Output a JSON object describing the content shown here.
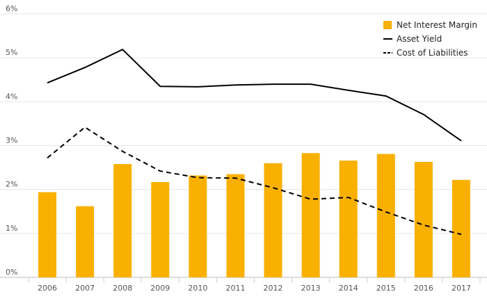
{
  "chart_data": {
    "type": "bar",
    "categories": [
      "2006",
      "2007",
      "2008",
      "2009",
      "2010",
      "2011",
      "2012",
      "2013",
      "2014",
      "2015",
      "2016",
      "2017"
    ],
    "ylim": [
      0,
      6
    ],
    "yticks": [
      0,
      1,
      2,
      3,
      4,
      5,
      6
    ],
    "ytick_labels": [
      "0%",
      "1%",
      "2%",
      "3%",
      "4%",
      "5%",
      "6%"
    ],
    "grid": true,
    "legend_position": "top-right",
    "series": [
      {
        "name": "Net Interest Margin",
        "kind": "bar",
        "color": "#F9B000",
        "values": [
          1.94,
          1.62,
          2.58,
          2.17,
          2.32,
          2.35,
          2.6,
          2.83,
          2.66,
          2.81,
          2.63,
          2.22
        ]
      },
      {
        "name": "Asset Yield",
        "kind": "line",
        "style": "solid",
        "color": "#000000",
        "values": [
          4.43,
          4.78,
          5.19,
          4.35,
          4.34,
          4.38,
          4.4,
          4.4,
          4.26,
          4.13,
          3.71,
          3.11
        ]
      },
      {
        "name": "Cost of Liabilities",
        "kind": "line",
        "style": "dashed",
        "color": "#000000",
        "values": [
          2.72,
          3.42,
          2.87,
          2.42,
          2.27,
          2.26,
          2.04,
          1.78,
          1.82,
          1.49,
          1.19,
          0.98
        ]
      }
    ]
  }
}
